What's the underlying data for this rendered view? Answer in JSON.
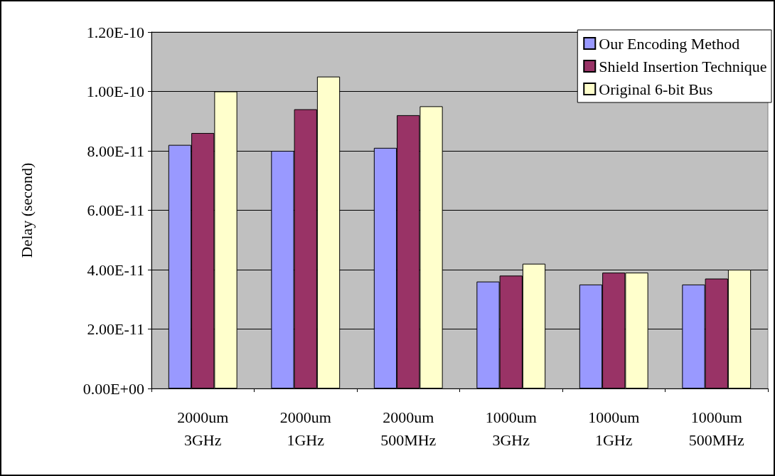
{
  "chart_data": {
    "type": "bar",
    "ylabel": "Delay (second)",
    "categories": [
      "2000um\n3GHz",
      "2000um\n1GHz",
      "2000um\n500MHz",
      "1000um\n3GHz",
      "1000um\n1GHz",
      "1000um\n500MHz"
    ],
    "series": [
      {
        "name": "Our Encoding Method",
        "color": "#9999ff",
        "values": [
          8.2e-11,
          8e-11,
          8.1e-11,
          3.6e-11,
          3.5e-11,
          3.5e-11
        ]
      },
      {
        "name": "Shield Insertion Technique",
        "color": "#993366",
        "values": [
          8.6e-11,
          9.4e-11,
          9.2e-11,
          3.8e-11,
          3.9e-11,
          3.7e-11
        ]
      },
      {
        "name": "Original 6-bit Bus",
        "color": "#ffffcc",
        "values": [
          1e-10,
          1.05e-10,
          9.5e-11,
          4.2e-11,
          3.9e-11,
          4e-11
        ]
      }
    ],
    "ylim": [
      0,
      1.2e-10
    ],
    "yticks": [
      {
        "value": 0,
        "label": "0.00E+00"
      },
      {
        "value": 2e-11,
        "label": "2.00E-11"
      },
      {
        "value": 4e-11,
        "label": "4.00E-11"
      },
      {
        "value": 6e-11,
        "label": "6.00E-11"
      },
      {
        "value": 8e-11,
        "label": "8.00E-11"
      },
      {
        "value": 1e-10,
        "label": "1.00E-10"
      },
      {
        "value": 1.2e-10,
        "label": "1.20E-10"
      }
    ],
    "grid": "y",
    "legend": "top right"
  }
}
